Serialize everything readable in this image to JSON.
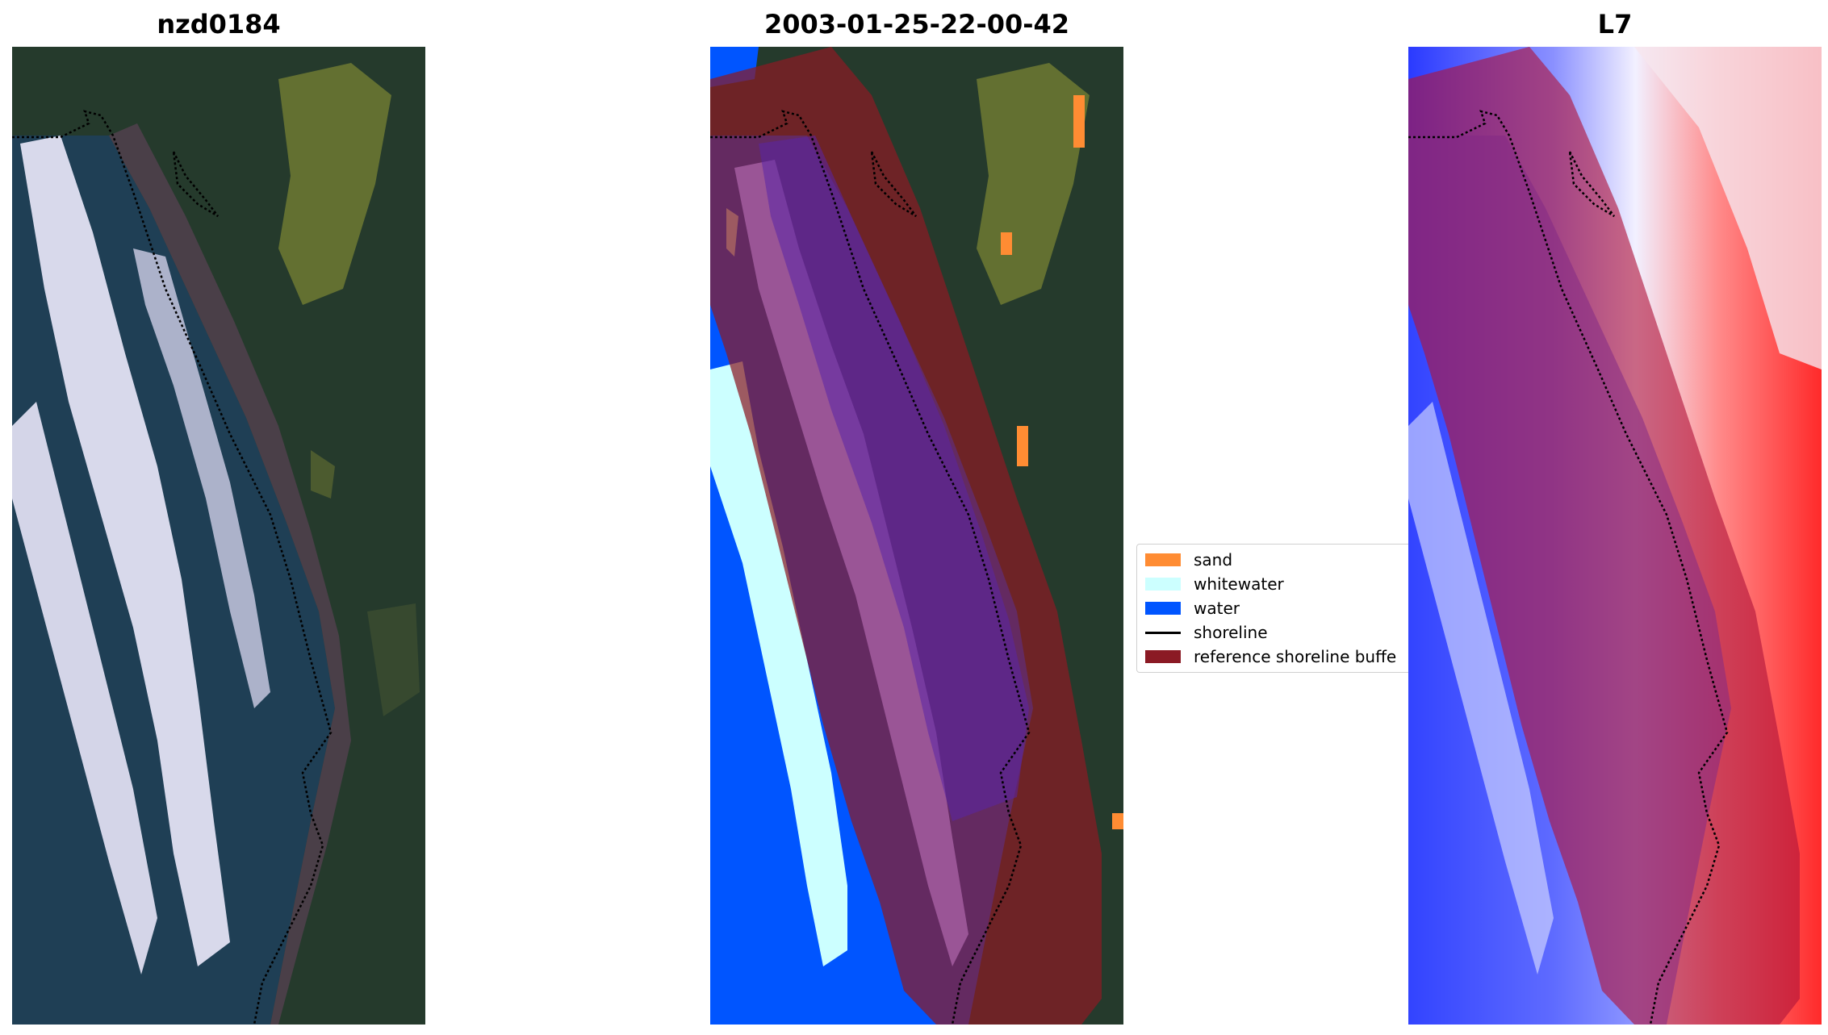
{
  "panels": [
    {
      "title": "nzd0184"
    },
    {
      "title": "2003-01-25-22-00-42"
    },
    {
      "title": "L7"
    }
  ],
  "legend": {
    "items": [
      {
        "label": "sand",
        "color": "#ff8c33"
      },
      {
        "label": "whitewater",
        "color": "#ccffff"
      },
      {
        "label": "water",
        "color": "#0055ff"
      },
      {
        "label": "shoreline",
        "color": "#000000"
      },
      {
        "label": "reference shoreline buffe",
        "color": "#8b1a24"
      }
    ]
  },
  "colors": {
    "land_dark": "#253a2c",
    "vegetation": "#6e7a32",
    "ocean_rgb": "#1f3f55",
    "surf": "#e8e6f8",
    "beach_rgb": "#4a3f48",
    "class_sand": "#ff8c33",
    "class_whitewater": "#ccffff",
    "class_water": "#0055ff",
    "buffer": "#8b1a24",
    "index_water": "#2a3aff",
    "index_land": "#ff2a2a",
    "index_mid": "#f2f0ff"
  }
}
